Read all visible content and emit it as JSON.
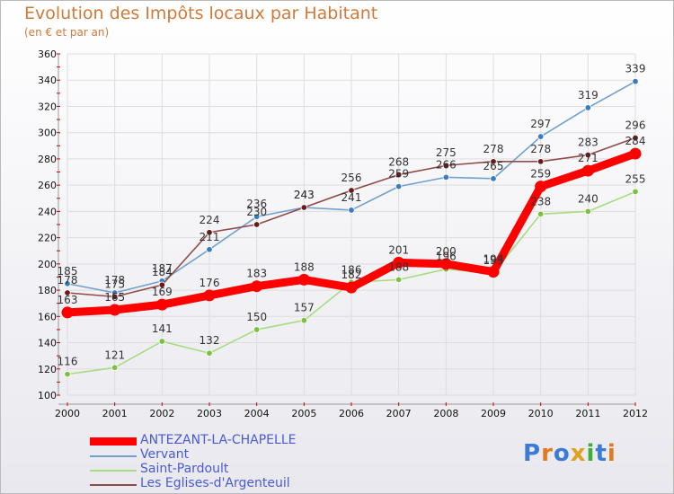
{
  "title": "Evolution des Impôts locaux par Habitant",
  "subtitle": "(en € et par an)",
  "logo": "Proxiti",
  "logo_colors": [
    "#3a7bd5",
    "#e07b20",
    "#3a7bd5",
    "#e0a020",
    "#3ab03a",
    "#3a7bd5",
    "#e07b20"
  ],
  "chart_data": {
    "type": "line",
    "title": "Evolution des Impôts locaux par Habitant",
    "ylabel": "(en € et par an)",
    "xlabel": "",
    "ylim": [
      100,
      360
    ],
    "y_ticks": [
      100,
      120,
      140,
      160,
      180,
      200,
      220,
      240,
      260,
      280,
      300,
      320,
      340,
      360
    ],
    "grid": true,
    "legend": "bottom-left",
    "x": [
      "2000",
      "2001",
      "2002",
      "2003",
      "2004",
      "2005",
      "2006",
      "2007",
      "2008",
      "2009",
      "2010",
      "2011",
      "2012"
    ],
    "series": [
      {
        "name": "ANTEZANT-LA-CHAPELLE",
        "color": "#ff0000",
        "marker": "#ff0000",
        "bold": true,
        "values": [
          163,
          165,
          169,
          176,
          183,
          188,
          182,
          201,
          200,
          194,
          259,
          271,
          284
        ]
      },
      {
        "name": "Vervant",
        "color": "#6fa0d0",
        "marker": "#3a7cc0",
        "bold": false,
        "values": [
          185,
          178,
          187,
          211,
          236,
          243,
          241,
          259,
          266,
          265,
          297,
          319,
          339
        ]
      },
      {
        "name": "Saint-Pardoult",
        "color": "#a8dc80",
        "marker": "#7cc040",
        "bold": false,
        "values": [
          116,
          121,
          141,
          132,
          150,
          157,
          186,
          188,
          196,
          193,
          238,
          240,
          255
        ]
      },
      {
        "name": "Les Eglises-d'Argenteuil",
        "color": "#904a4a",
        "marker": "#6a1a1a",
        "bold": false,
        "values": [
          178,
          175,
          184,
          224,
          230,
          243,
          256,
          268,
          275,
          278,
          278,
          283,
          296
        ]
      }
    ]
  }
}
